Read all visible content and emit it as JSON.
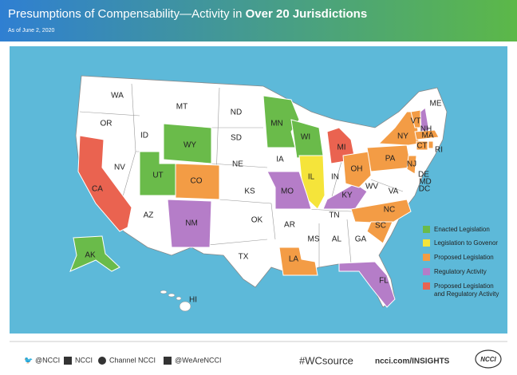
{
  "header": {
    "title": "Presumptions of Compensability—Activity in ",
    "title_bold": "Over 20 Jurisdictions",
    "subtitle": "As of June 2, 2020"
  },
  "states": [
    "WA",
    "OR",
    "MT",
    "ID",
    "ND",
    "MN",
    "WI",
    "MI",
    "ME",
    "NH",
    "VT",
    "MA",
    "NY",
    "CT",
    "RI",
    "PA",
    "NJ",
    "DE",
    "MD",
    "DC",
    "OH",
    "IN",
    "IL",
    "IA",
    "SD",
    "WY",
    "NV",
    "UT",
    "CO",
    "NE",
    "KS",
    "MO",
    "KY",
    "WV",
    "VA",
    "NC",
    "TN",
    "SC",
    "GA",
    "AL",
    "MS",
    "AR",
    "LA",
    "OK",
    "TX",
    "NM",
    "AZ",
    "CA",
    "AK",
    "HI",
    "FL"
  ],
  "legend": [
    [
      "Enacted Legislation"
    ],
    [
      "Legislation to Govenor"
    ],
    [
      "Proposed Legislation"
    ],
    [
      "Regulatory Activity"
    ],
    [
      "Proposed Legislation",
      "and Regulatory Activity"
    ]
  ],
  "footer": {
    "twitter": "@NCCI",
    "linkedin": "NCCI",
    "youtube": "Channel NCCI",
    "facebook": "@WeAreNCCI",
    "hashtag": "#WCsource",
    "url": "ncci.com/INSIGHTS",
    "logo": "NCCI"
  }
}
